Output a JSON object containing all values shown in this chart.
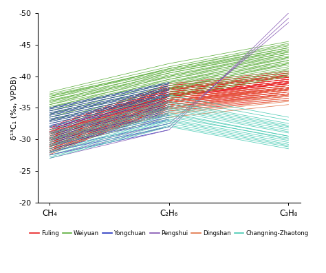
{
  "x_positions": [
    0,
    1,
    2
  ],
  "x_labels": [
    "CH₄",
    "C₂H₆",
    "C₃H₈"
  ],
  "ylim": [
    -50,
    -20
  ],
  "yticks": [
    -50,
    -45,
    -40,
    -35,
    -30,
    -25,
    -20
  ],
  "ylabel": "δ¹³C₁ (‰, VPDB)",
  "groups": {
    "Fuling": {
      "color": "#e8191a",
      "lines": [
        [
          -31.0,
          -37.5,
          -39.5
        ],
        [
          -30.8,
          -37.2,
          -39.2
        ],
        [
          -30.5,
          -37.0,
          -38.8
        ],
        [
          -30.2,
          -36.8,
          -38.5
        ],
        [
          -30.0,
          -36.5,
          -38.2
        ],
        [
          -29.8,
          -36.2,
          -38.0
        ],
        [
          -29.5,
          -36.0,
          -37.8
        ],
        [
          -29.2,
          -35.8,
          -37.5
        ],
        [
          -29.0,
          -35.5,
          -37.2
        ],
        [
          -28.8,
          -35.2,
          -37.0
        ],
        [
          -28.5,
          -35.0,
          -36.8
        ],
        [
          -28.2,
          -34.8,
          -36.5
        ],
        [
          -28.0,
          -34.5,
          -36.2
        ],
        [
          -31.5,
          -38.0,
          -40.0
        ],
        [
          -31.2,
          -37.8,
          -39.8
        ],
        [
          -30.8,
          -37.5,
          -39.5
        ],
        [
          -30.5,
          -37.2,
          -39.2
        ],
        [
          -30.2,
          -37.0,
          -39.0
        ],
        [
          -29.8,
          -36.8,
          -38.8
        ],
        [
          -29.5,
          -36.5,
          -38.5
        ],
        [
          -29.2,
          -36.2,
          -38.2
        ],
        [
          -28.8,
          -36.0,
          -38.0
        ],
        [
          -28.5,
          -35.8,
          -37.8
        ],
        [
          -28.2,
          -35.5,
          -37.5
        ],
        [
          -27.9,
          -35.2,
          -37.2
        ],
        [
          -31.8,
          -38.5,
          -40.5
        ],
        [
          -31.5,
          -38.2,
          -40.2
        ],
        [
          -31.2,
          -38.0,
          -40.0
        ],
        [
          -30.8,
          -37.8,
          -39.8
        ],
        [
          -30.5,
          -37.5,
          -39.5
        ],
        [
          -30.2,
          -37.2,
          -39.2
        ],
        [
          -29.8,
          -37.0,
          -39.0
        ],
        [
          -29.5,
          -36.8,
          -38.8
        ],
        [
          -29.2,
          -36.5,
          -38.5
        ],
        [
          -28.8,
          -36.2,
          -38.2
        ],
        [
          -28.5,
          -36.0,
          -38.0
        ],
        [
          -28.2,
          -35.8,
          -37.8
        ],
        [
          -27.9,
          -35.5,
          -37.5
        ],
        [
          -27.6,
          -35.2,
          -37.2
        ],
        [
          -32.0,
          -38.8,
          -40.8
        ],
        [
          -31.8,
          -38.5,
          -40.5
        ],
        [
          -31.5,
          -38.2,
          -40.2
        ],
        [
          -31.2,
          -38.0,
          -40.0
        ],
        [
          -30.8,
          -37.8,
          -39.8
        ],
        [
          -30.5,
          -37.5,
          -39.5
        ],
        [
          -30.2,
          -37.2,
          -39.2
        ],
        [
          -29.8,
          -37.0,
          -39.0
        ],
        [
          -29.5,
          -36.8,
          -38.8
        ],
        [
          -29.2,
          -36.5,
          -38.5
        ],
        [
          -28.8,
          -36.2,
          -38.2
        ]
      ]
    },
    "Weiyuan": {
      "color": "#56ab35",
      "lines": [
        [
          -37.0,
          -41.0,
          -44.5
        ],
        [
          -36.8,
          -40.8,
          -44.2
        ],
        [
          -36.5,
          -40.5,
          -44.0
        ],
        [
          -36.2,
          -40.2,
          -43.8
        ],
        [
          -36.0,
          -40.0,
          -43.5
        ],
        [
          -35.8,
          -39.8,
          -43.2
        ],
        [
          -35.5,
          -39.5,
          -43.0
        ],
        [
          -35.2,
          -39.2,
          -42.8
        ],
        [
          -35.0,
          -39.0,
          -42.5
        ],
        [
          -34.8,
          -38.8,
          -42.2
        ],
        [
          -34.5,
          -38.5,
          -42.0
        ],
        [
          -34.2,
          -38.2,
          -41.8
        ],
        [
          -34.0,
          -38.0,
          -41.5
        ],
        [
          -33.8,
          -37.8,
          -41.2
        ],
        [
          -33.5,
          -37.5,
          -41.0
        ],
        [
          -33.2,
          -37.2,
          -40.8
        ],
        [
          -33.0,
          -37.0,
          -40.5
        ],
        [
          -32.8,
          -36.8,
          -40.2
        ],
        [
          -32.5,
          -36.5,
          -40.0
        ],
        [
          -36.5,
          -41.2,
          -45.0
        ],
        [
          -36.0,
          -40.8,
          -44.5
        ],
        [
          -35.5,
          -40.5,
          -44.2
        ],
        [
          -35.0,
          -40.0,
          -43.8
        ],
        [
          -34.5,
          -39.5,
          -43.5
        ],
        [
          -34.0,
          -39.0,
          -43.0
        ],
        [
          -33.5,
          -38.5,
          -42.5
        ],
        [
          -33.0,
          -38.0,
          -42.0
        ],
        [
          -37.2,
          -41.5,
          -45.2
        ],
        [
          -37.5,
          -42.0,
          -45.5
        ],
        [
          -36.8,
          -41.2,
          -44.8
        ]
      ]
    },
    "Yongchuan": {
      "color": "#1e2dbe",
      "lines": [
        [
          -27.5,
          -31.5
        ],
        [
          -28.0,
          -32.0
        ],
        [
          -28.5,
          -32.5
        ],
        [
          -29.0,
          -33.0
        ],
        [
          -29.5,
          -33.5
        ],
        [
          -30.0,
          -34.0
        ],
        [
          -30.5,
          -34.5
        ],
        [
          -31.0,
          -35.0
        ],
        [
          -31.5,
          -35.5
        ],
        [
          -32.0,
          -36.0
        ],
        [
          -32.5,
          -36.5
        ],
        [
          -33.0,
          -37.0
        ],
        [
          -33.5,
          -37.5
        ],
        [
          -34.0,
          -38.0
        ],
        [
          -34.5,
          -38.5
        ],
        [
          -35.0,
          -39.0
        ],
        [
          -29.2,
          -33.2
        ],
        [
          -29.8,
          -33.8
        ],
        [
          -30.2,
          -34.2
        ],
        [
          -30.8,
          -34.8
        ],
        [
          -31.2,
          -35.2
        ],
        [
          -31.8,
          -35.8
        ],
        [
          -32.2,
          -36.2
        ],
        [
          -32.8,
          -36.8
        ],
        [
          -33.2,
          -37.2
        ],
        [
          -33.8,
          -37.8
        ],
        [
          -34.2,
          -38.2
        ],
        [
          -34.8,
          -38.8
        ]
      ]
    },
    "Pengshui": {
      "color": "#8050b0",
      "lines": [
        [
          -27.0,
          -31.5,
          -50.0
        ],
        [
          -27.5,
          -32.0,
          -49.2
        ],
        [
          -28.0,
          -32.5,
          -48.5
        ]
      ]
    },
    "Dingshan": {
      "color": "#e07040",
      "lines": [
        [
          -31.0,
          -36.0,
          -38.0
        ],
        [
          -30.5,
          -35.5,
          -37.5
        ],
        [
          -30.0,
          -35.0,
          -37.0
        ],
        [
          -29.5,
          -34.5,
          -36.5
        ],
        [
          -29.0,
          -34.0,
          -36.0
        ],
        [
          -28.5,
          -33.5,
          -35.5
        ],
        [
          -31.5,
          -36.5,
          -38.5
        ],
        [
          -31.2,
          -36.2,
          -38.2
        ],
        [
          -30.8,
          -35.8,
          -37.8
        ],
        [
          -30.2,
          -35.2,
          -37.2
        ],
        [
          -29.8,
          -34.8,
          -36.8
        ],
        [
          -29.2,
          -34.2,
          -36.2
        ]
      ]
    },
    "Changning-Zhaotong": {
      "color": "#40c8b0",
      "lines": [
        [
          -28.5,
          -33.5,
          -30.2
        ],
        [
          -28.2,
          -33.2,
          -29.8
        ],
        [
          -28.0,
          -33.0,
          -29.5
        ],
        [
          -27.8,
          -32.8,
          -29.2
        ],
        [
          -27.5,
          -32.5,
          -29.0
        ],
        [
          -27.2,
          -32.2,
          -28.8
        ],
        [
          -27.0,
          -32.0,
          -28.5
        ],
        [
          -29.0,
          -34.0,
          -30.5
        ],
        [
          -29.5,
          -34.5,
          -31.0
        ],
        [
          -30.0,
          -35.0,
          -31.5
        ],
        [
          -30.5,
          -35.5,
          -32.0
        ],
        [
          -31.0,
          -36.0,
          -32.5
        ],
        [
          -31.5,
          -36.5,
          -33.0
        ],
        [
          -32.0,
          -37.0,
          -33.5
        ],
        [
          -28.8,
          -33.8,
          -30.0
        ],
        [
          -29.2,
          -34.2,
          -30.5
        ],
        [
          -29.8,
          -34.8,
          -31.2
        ],
        [
          -30.2,
          -35.2,
          -31.8
        ],
        [
          -30.8,
          -35.8,
          -32.2
        ]
      ]
    }
  }
}
